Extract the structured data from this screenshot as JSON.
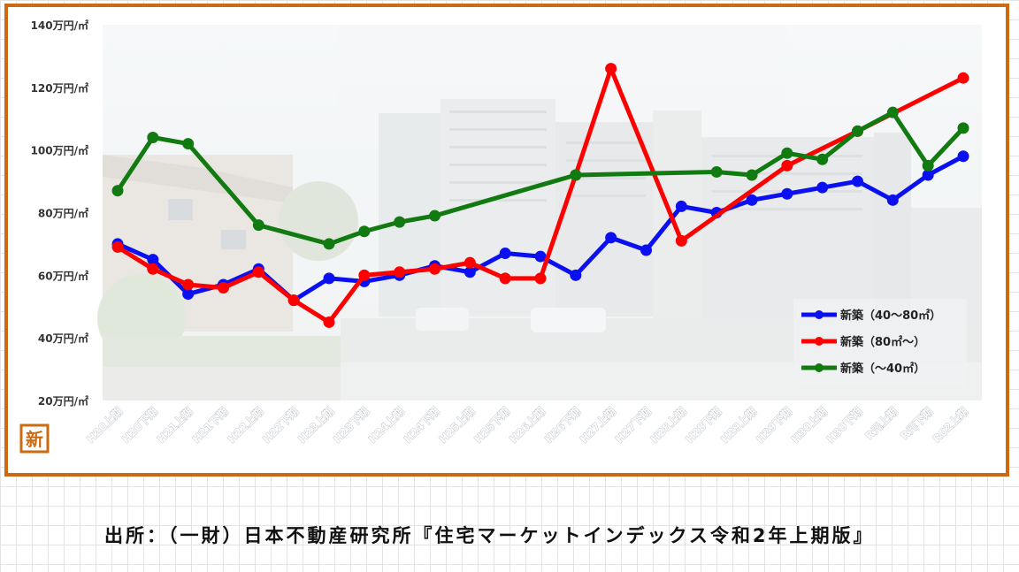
{
  "chart_data": {
    "type": "line",
    "categories": [
      "H20上期",
      "H20下期",
      "H21上期",
      "H21下期",
      "H22上期",
      "H22下期",
      "H23上期",
      "H23下期",
      "H24上期",
      "H24下期",
      "H25上期",
      "H25下期",
      "H26上期",
      "H26下期",
      "H27上期",
      "H27下期",
      "H28上期",
      "H28下期",
      "H29上期",
      "H29下期",
      "H30上期",
      "H30下期",
      "R元上期",
      "R元下期",
      "R02上期"
    ],
    "y_ticks": [
      "20万円/㎡",
      "40万円/㎡",
      "60万円/㎡",
      "80万円/㎡",
      "100万円/㎡",
      "120万円/㎡",
      "140万円/㎡"
    ],
    "y_tick_values": [
      20,
      40,
      60,
      80,
      100,
      120,
      140
    ],
    "ylim": [
      20,
      140
    ],
    "legend_position": "bottom-right",
    "grid": false,
    "series": [
      {
        "name": "新築（40～80㎡）",
        "color": "#0a10f0",
        "values": [
          70,
          65,
          54,
          57,
          62,
          52,
          59,
          58,
          60,
          63,
          61,
          67,
          66,
          60,
          72,
          68,
          82,
          80,
          84,
          86,
          88,
          90,
          84,
          92,
          98
        ]
      },
      {
        "name": "新築（80㎡～）",
        "color": "#ff0000",
        "values": [
          69,
          62,
          57,
          56,
          61,
          52,
          45,
          60,
          61,
          62,
          64,
          59,
          59,
          92,
          126,
          null,
          71,
          null,
          null,
          95,
          null,
          106,
          null,
          null,
          123
        ]
      },
      {
        "name": "新築（～40㎡）",
        "color": "#117a11",
        "values": [
          87,
          104,
          102,
          null,
          76,
          null,
          70,
          74,
          77,
          79,
          null,
          null,
          null,
          92,
          null,
          null,
          null,
          93,
          92,
          99,
          97,
          106,
          112,
          95,
          107
        ]
      }
    ]
  },
  "logo_text": "新",
  "source_note": "出所：（一財）日本不動産研究所『住宅マーケットインデックス令和2年上期版』"
}
